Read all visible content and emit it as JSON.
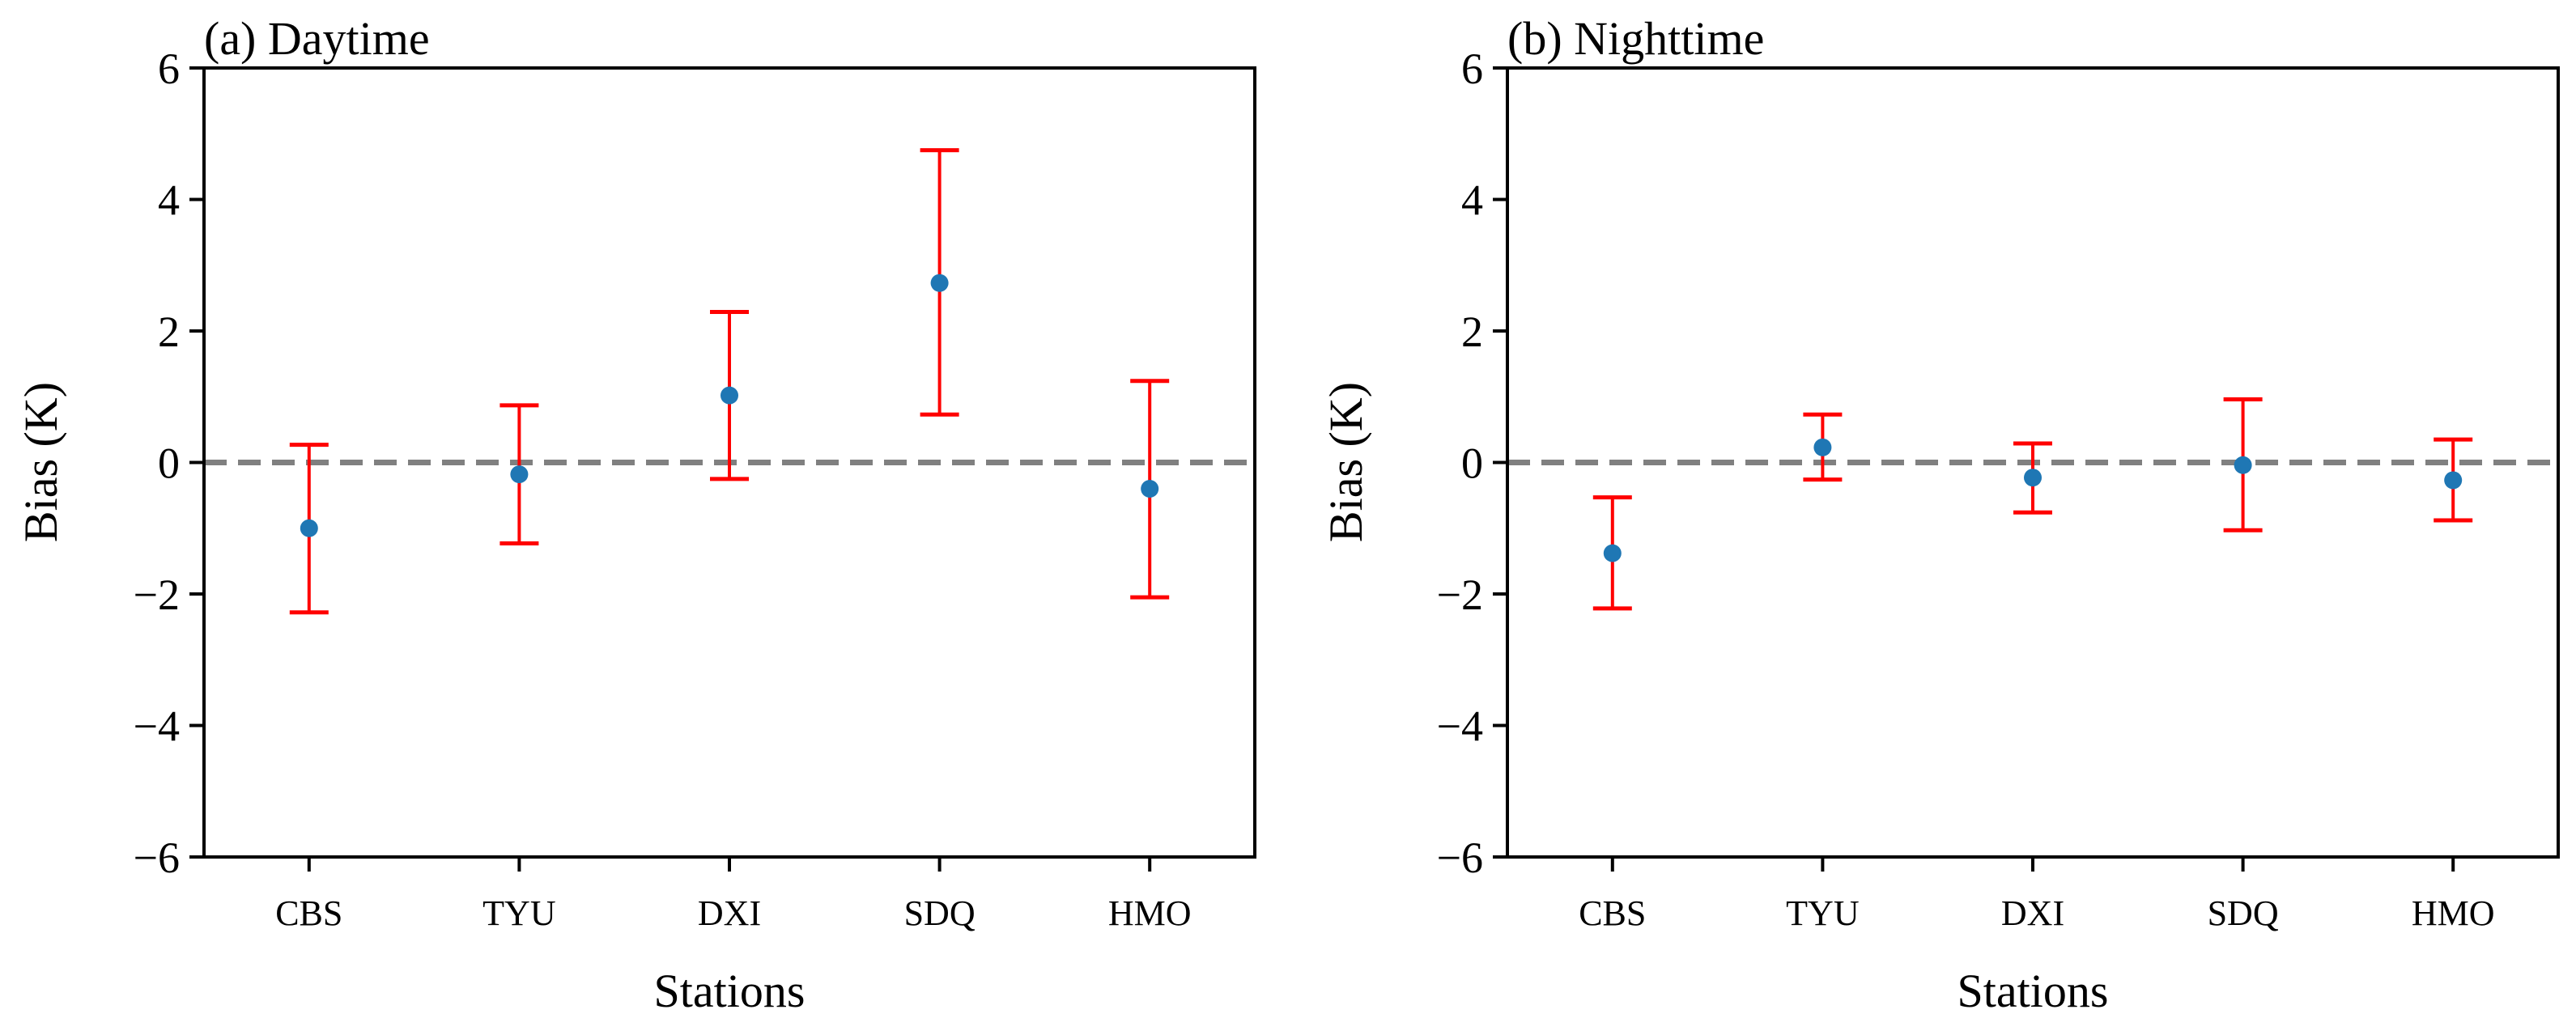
{
  "colors": {
    "marker": "#1f77b4",
    "errorbar": "#ff0000",
    "refline": "#808080",
    "axes": "#000000"
  },
  "chart_data": [
    {
      "type": "errorbar",
      "title": "(a) Daytime",
      "xlabel": "Stations",
      "ylabel": "Bias (K)",
      "categories": [
        "CBS",
        "TYU",
        "DXI",
        "SDQ",
        "HMO"
      ],
      "values": [
        -1.0,
        -0.18,
        1.02,
        2.73,
        -0.4
      ],
      "lower": [
        -2.28,
        -1.23,
        -0.25,
        0.73,
        -2.05
      ],
      "upper": [
        0.27,
        0.87,
        2.29,
        4.75,
        1.24
      ],
      "ylim": [
        -6,
        6
      ],
      "yticks": [
        6,
        4,
        2,
        0,
        -2,
        -4,
        -6
      ],
      "ytick_labels": [
        "6",
        "4",
        "2",
        "0",
        "−2",
        "−4",
        "−6"
      ],
      "reference_line": 0
    },
    {
      "type": "errorbar",
      "title": "(b) Nighttime",
      "xlabel": "Stations",
      "ylabel": "Bias (K)",
      "categories": [
        "CBS",
        "TYU",
        "DXI",
        "SDQ",
        "HMO"
      ],
      "values": [
        -1.38,
        0.23,
        -0.23,
        -0.04,
        -0.27
      ],
      "lower": [
        -2.22,
        -0.26,
        -0.76,
        -1.03,
        -0.88
      ],
      "upper": [
        -0.53,
        0.73,
        0.29,
        0.96,
        0.35
      ],
      "ylim": [
        -6,
        6
      ],
      "yticks": [
        6,
        4,
        2,
        0,
        -2,
        -4,
        -6
      ],
      "ytick_labels": [
        "6",
        "4",
        "2",
        "0",
        "−2",
        "−4",
        "−6"
      ],
      "reference_line": 0
    }
  ]
}
